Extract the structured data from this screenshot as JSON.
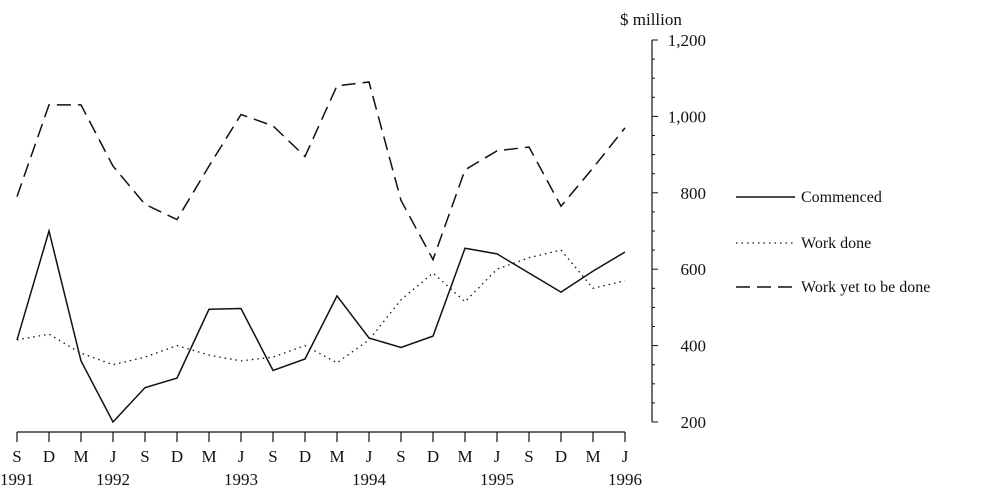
{
  "chart_data": {
    "type": "line",
    "ylabel": "$ million",
    "ylim": [
      200,
      1200
    ],
    "yticks": [
      "200",
      "400",
      "600",
      "800",
      "1,000",
      "1,200"
    ],
    "x": [
      "S 1991",
      "D 1991",
      "M 1992",
      "J 1992",
      "S 1992",
      "D 1992",
      "M 1993",
      "J 1993",
      "S 1993",
      "D 1993",
      "M 1994",
      "J 1994",
      "S 1994",
      "D 1994",
      "M 1995",
      "J 1995",
      "S 1995",
      "D 1995",
      "M 1996",
      "J 1996"
    ],
    "xtick_labels": [
      "S",
      "D",
      "M",
      "J",
      "S",
      "D",
      "M",
      "J",
      "S",
      "D",
      "M",
      "J",
      "S",
      "D",
      "M",
      "J",
      "S",
      "D",
      "M",
      "J"
    ],
    "year_labels": [
      "1991",
      "1992",
      "1993",
      "1994",
      "1995",
      "1996"
    ],
    "series": [
      {
        "name": "Commenced",
        "style": "solid",
        "values": [
          415,
          700,
          360,
          200,
          290,
          315,
          495,
          497,
          335,
          365,
          530,
          420,
          395,
          425,
          655,
          640,
          590,
          540,
          595,
          645
        ]
      },
      {
        "name": "Work done",
        "style": "dotted",
        "values": [
          415,
          430,
          380,
          350,
          370,
          400,
          375,
          360,
          370,
          400,
          355,
          415,
          520,
          590,
          515,
          600,
          630,
          650,
          550,
          570
        ]
      },
      {
        "name": "Work yet to be done",
        "style": "dashed",
        "values": [
          790,
          1030,
          1030,
          870,
          770,
          730,
          870,
          1005,
          975,
          895,
          1080,
          1090,
          780,
          625,
          860,
          910,
          920,
          765,
          865,
          970
        ]
      }
    ],
    "grid": false,
    "legend_position": "right",
    "colors": {
      "line": "#111111"
    }
  }
}
